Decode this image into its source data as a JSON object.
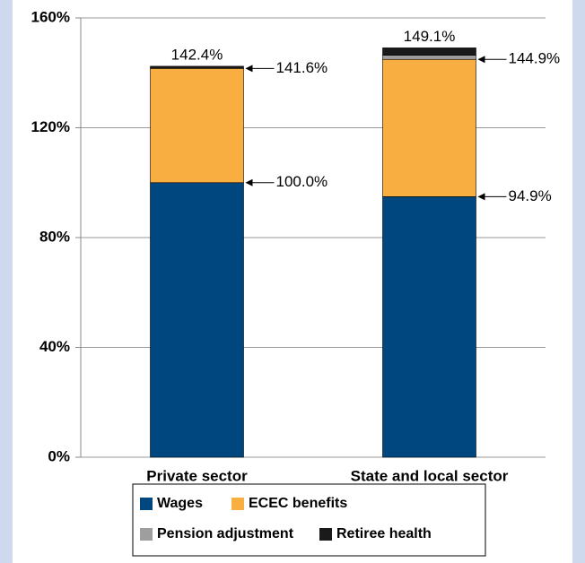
{
  "chart_data": {
    "type": "stacked_bar",
    "categories": [
      "Private sector",
      "State and local sector"
    ],
    "series": [
      {
        "name": "Wages",
        "color": "#00467f",
        "values": [
          100.0,
          94.9
        ]
      },
      {
        "name": "ECEC benefits",
        "color": "#f8ae41",
        "values": [
          41.6,
          50.0
        ]
      },
      {
        "name": "Pension adjustment",
        "color": "#9e9e9e",
        "values": [
          0,
          1.5
        ]
      },
      {
        "name": "Retiree health",
        "color": "#1a1a1a",
        "values": [
          0.8,
          2.7
        ]
      }
    ],
    "annotations": [
      [
        {
          "value": 142.4,
          "label": "142.4%"
        },
        {
          "value": 141.6,
          "label": "141.6%"
        },
        {
          "value": 100.0,
          "label": "100.0%"
        }
      ],
      [
        {
          "value": 149.1,
          "label": "149.1%"
        },
        {
          "value": 144.9,
          "label": "144.9%"
        },
        {
          "value": 94.9,
          "label": "94.9%"
        }
      ]
    ],
    "ylim": [
      0,
      160
    ],
    "yticks": [
      {
        "value": 0,
        "label": "0%"
      },
      {
        "value": 40,
        "label": "40%"
      },
      {
        "value": 80,
        "label": "80%"
      },
      {
        "value": 120,
        "label": "120%"
      },
      {
        "value": 160,
        "label": "160%"
      }
    ],
    "grid": true
  }
}
